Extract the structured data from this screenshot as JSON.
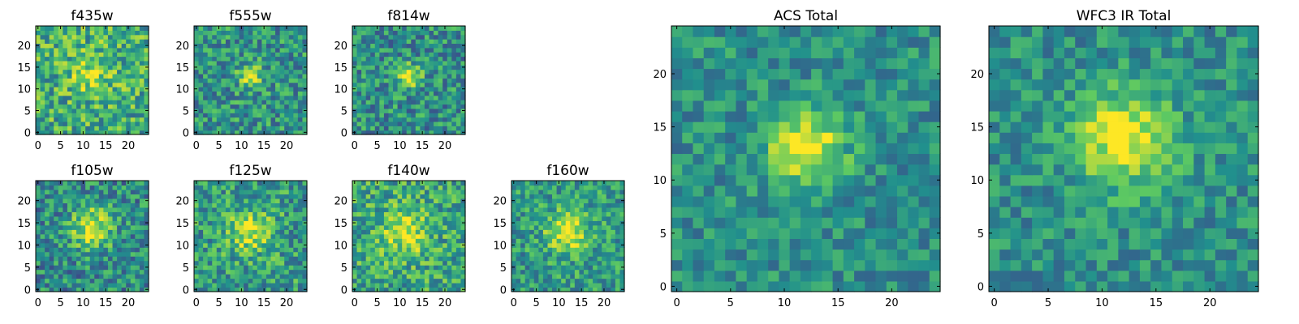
{
  "figure": {
    "background": "#ffffff",
    "colormap": "viridis",
    "colormap_stops": [
      "#440154",
      "#3b528b",
      "#21908d",
      "#5dc962",
      "#fde725"
    ]
  },
  "chart_data": [
    {
      "type": "heatmap",
      "title": "f435w",
      "size": 25,
      "xticks": [
        "0",
        "5",
        "10",
        "15",
        "20"
      ],
      "yticks": [
        "0",
        "5",
        "10",
        "15",
        "20"
      ],
      "xlim": [
        -0.5,
        24.5
      ],
      "ylim": [
        -0.5,
        24.5
      ],
      "grid": false,
      "source": {
        "cx": 12,
        "cy": 14,
        "sigma": 3.5,
        "peak": 0.25
      },
      "noise": {
        "base": 0.62,
        "amp": 0.55,
        "seed": 11
      }
    },
    {
      "type": "heatmap",
      "title": "f555w",
      "size": 25,
      "xticks": [
        "0",
        "5",
        "10",
        "15",
        "20"
      ],
      "yticks": [
        "0",
        "5",
        "10",
        "15",
        "20"
      ],
      "xlim": [
        -0.5,
        24.5
      ],
      "ylim": [
        -0.5,
        24.5
      ],
      "grid": false,
      "source": {
        "cx": 12,
        "cy": 13,
        "sigma": 1.8,
        "peak": 0.45
      },
      "noise": {
        "base": 0.52,
        "amp": 0.5,
        "seed": 23
      }
    },
    {
      "type": "heatmap",
      "title": "f814w",
      "size": 25,
      "xticks": [
        "0",
        "5",
        "10",
        "15",
        "20"
      ],
      "yticks": [
        "0",
        "5",
        "10",
        "15",
        "20"
      ],
      "xlim": [
        -0.5,
        24.5
      ],
      "ylim": [
        -0.5,
        24.5
      ],
      "grid": false,
      "source": {
        "cx": 12,
        "cy": 13,
        "sigma": 1.8,
        "peak": 0.5
      },
      "noise": {
        "base": 0.5,
        "amp": 0.5,
        "seed": 37
      }
    },
    {
      "type": "heatmap",
      "title": "f105w",
      "size": 25,
      "xticks": [
        "0",
        "5",
        "10",
        "15",
        "20"
      ],
      "yticks": [
        "0",
        "5",
        "10",
        "15",
        "20"
      ],
      "xlim": [
        -0.5,
        24.5
      ],
      "ylim": [
        -0.5,
        24.5
      ],
      "grid": false,
      "source": {
        "cx": 12,
        "cy": 14,
        "sigma": 3.2,
        "peak": 0.5
      },
      "noise": {
        "base": 0.48,
        "amp": 0.5,
        "seed": 41
      }
    },
    {
      "type": "heatmap",
      "title": "f125w",
      "size": 25,
      "xticks": [
        "0",
        "5",
        "10",
        "15",
        "20"
      ],
      "yticks": [
        "0",
        "5",
        "10",
        "15",
        "20"
      ],
      "xlim": [
        -0.5,
        24.5
      ],
      "ylim": [
        -0.5,
        24.5
      ],
      "grid": false,
      "source": {
        "cx": 12,
        "cy": 13,
        "sigma": 3.5,
        "peak": 0.35
      },
      "noise": {
        "base": 0.55,
        "amp": 0.5,
        "seed": 53
      }
    },
    {
      "type": "heatmap",
      "title": "f140w",
      "size": 25,
      "xticks": [
        "0",
        "5",
        "10",
        "15",
        "20"
      ],
      "yticks": [
        "0",
        "5",
        "10",
        "15",
        "20"
      ],
      "xlim": [
        -0.5,
        24.5
      ],
      "ylim": [
        -0.5,
        24.5
      ],
      "grid": false,
      "source": {
        "cx": 11,
        "cy": 13,
        "sigma": 3.5,
        "peak": 0.35
      },
      "noise": {
        "base": 0.6,
        "amp": 0.5,
        "seed": 67
      }
    },
    {
      "type": "heatmap",
      "title": "f160w",
      "size": 25,
      "xticks": [
        "0",
        "5",
        "10",
        "15",
        "20"
      ],
      "yticks": [
        "0",
        "5",
        "10",
        "15",
        "20"
      ],
      "xlim": [
        -0.5,
        24.5
      ],
      "ylim": [
        -0.5,
        24.5
      ],
      "grid": false,
      "source": {
        "cx": 12,
        "cy": 13,
        "sigma": 3.2,
        "peak": 0.45
      },
      "noise": {
        "base": 0.55,
        "amp": 0.45,
        "seed": 79
      }
    },
    {
      "type": "heatmap",
      "title": "ACS Total",
      "size": 25,
      "xticks": [
        "0",
        "5",
        "10",
        "15",
        "20"
      ],
      "yticks": [
        "0",
        "5",
        "10",
        "15",
        "20"
      ],
      "xlim": [
        -0.5,
        24.5
      ],
      "ylim": [
        -0.5,
        24.5
      ],
      "grid": false,
      "source": {
        "cx": 12,
        "cy": 13,
        "sigma": 2.4,
        "peak": 0.55
      },
      "noise": {
        "base": 0.5,
        "amp": 0.35,
        "seed": 83
      }
    },
    {
      "type": "heatmap",
      "title": "WFC3 IR Total",
      "size": 25,
      "xticks": [
        "0",
        "5",
        "10",
        "15",
        "20"
      ],
      "yticks": [
        "0",
        "5",
        "10",
        "15",
        "20"
      ],
      "xlim": [
        -0.5,
        24.5
      ],
      "ylim": [
        -0.5,
        24.5
      ],
      "grid": false,
      "source": {
        "cx": 12,
        "cy": 14,
        "sigma": 3.2,
        "peak": 0.5
      },
      "noise": {
        "base": 0.5,
        "amp": 0.35,
        "seed": 97
      }
    }
  ]
}
